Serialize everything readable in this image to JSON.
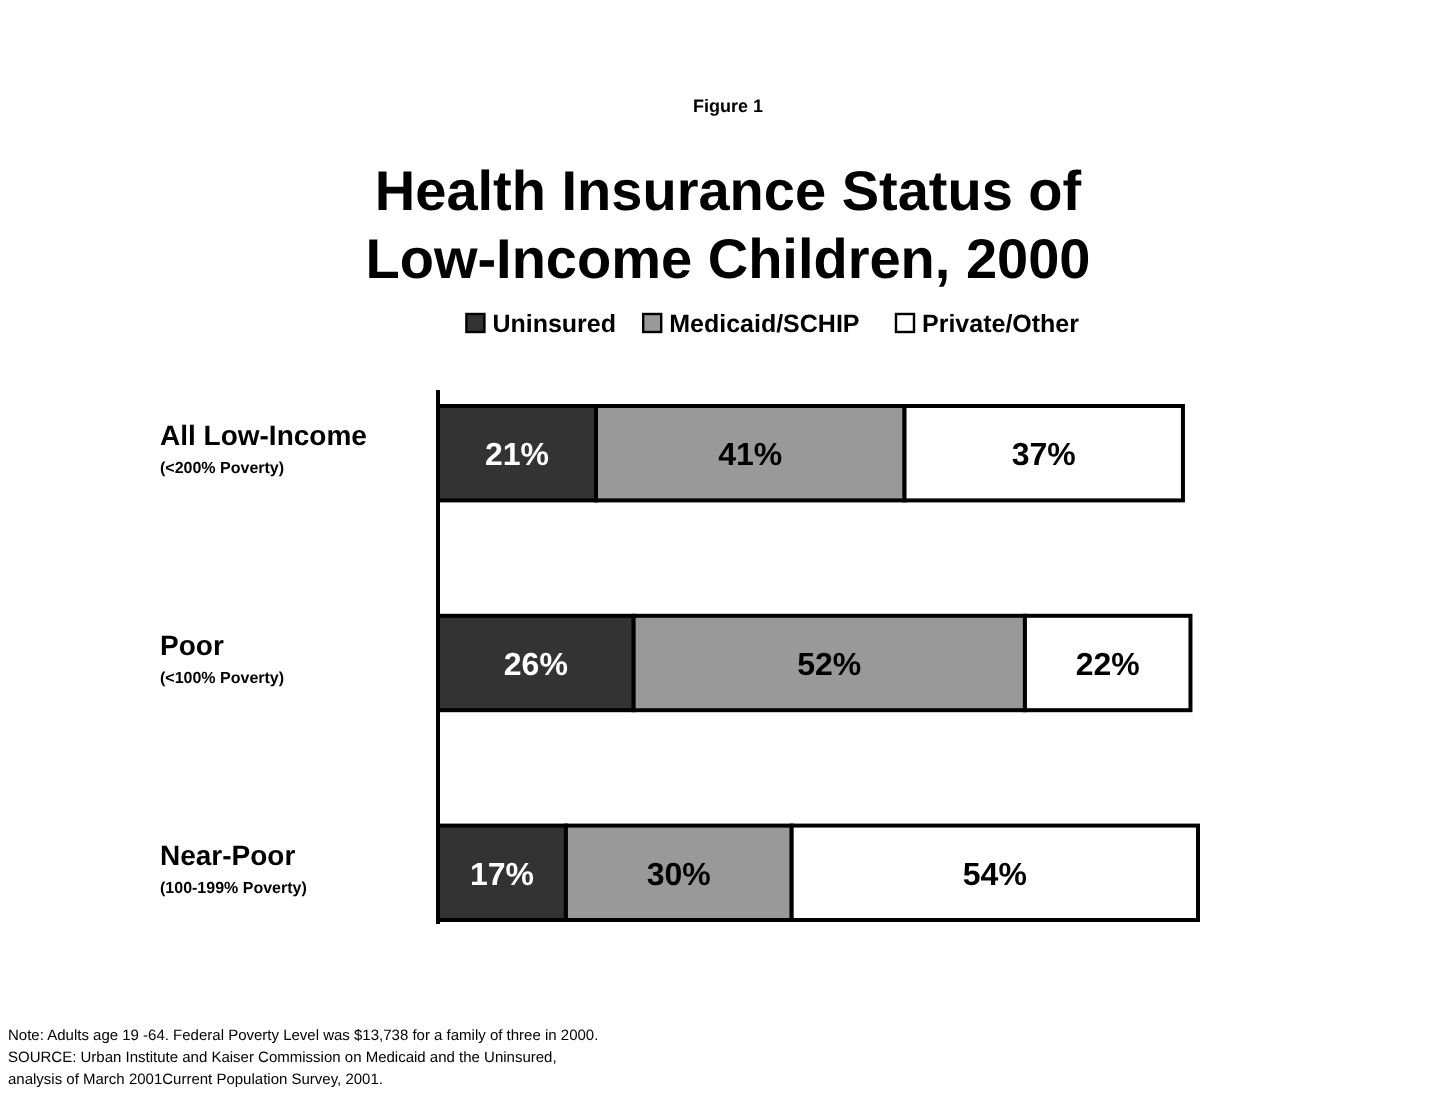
{
  "chart_data": {
    "type": "bar",
    "orientation": "horizontal",
    "stacked": true,
    "subtitle": "Figure 1",
    "title": "Health Insurance Status of\nLow-Income Children, 2000",
    "categories": [
      "All Low-Income\n(<200% Poverty)",
      "Poor\n(<100% Poverty)",
      "Near-Poor\n(100-199% Poverty)"
    ],
    "series": [
      {
        "name": "Uninsured",
        "color": "#333333",
        "values": [
          21,
          26,
          17
        ],
        "value_labels": [
          "21%",
          "26%",
          "17%"
        ]
      },
      {
        "name": "Medicaid/SCHIP",
        "color": "#999999",
        "values": [
          41,
          52,
          30
        ],
        "value_labels": [
          "41%",
          "52%",
          "30%"
        ]
      },
      {
        "name": "Private/Other",
        "color": "#ffffff",
        "values": [
          37,
          22,
          54
        ],
        "value_labels": [
          "37%",
          "22%",
          "54%"
        ]
      }
    ],
    "legend": "top",
    "annotations": [
      "Note: Adults age 19 -64.  Federal Poverty Level was $13,738 for a family of three in  2000.",
      "SOURCE: Urban Institute and Kaiser Commission on Medicaid and the Uninsured,",
      "analysis of March 2001Current Population Survey, 2001."
    ]
  }
}
